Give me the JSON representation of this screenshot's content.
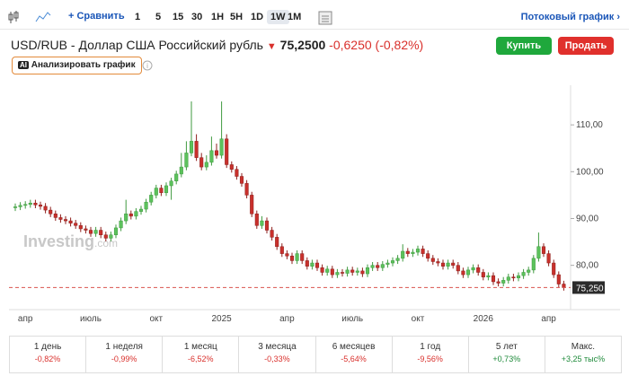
{
  "toolbar": {
    "compare": "Сравнить",
    "timeframes": [
      "1",
      "5",
      "15",
      "30",
      "1H",
      "5H",
      "1D",
      "1W",
      "1M"
    ],
    "selected": 7,
    "stream": "Потоковый график"
  },
  "header": {
    "title": "USD/RUB - Доллар США Российский рубль",
    "price": "75,2500",
    "change": "-0,6250",
    "change_pct": "(-0,82%)",
    "buy": "Купить",
    "sell": "Продать",
    "analyze": "Анализировать график",
    "ai": "AI"
  },
  "chart_data": {
    "type": "candlestick",
    "watermark": "Investing",
    "watermark_suffix": ".com",
    "up_color": "#5cc25c",
    "down_color": "#c9302c",
    "grid": false,
    "categories": [
      null,
      null,
      "апр",
      null,
      null,
      null,
      null,
      null,
      null,
      null,
      null,
      null,
      null,
      null,
      null,
      "июль",
      null,
      null,
      null,
      null,
      null,
      null,
      null,
      null,
      null,
      null,
      null,
      null,
      "окт",
      null,
      null,
      null,
      null,
      null,
      null,
      null,
      null,
      null,
      null,
      null,
      null,
      "2025",
      null,
      null,
      null,
      null,
      null,
      null,
      null,
      null,
      null,
      null,
      null,
      null,
      "апр",
      null,
      null,
      null,
      null,
      null,
      null,
      null,
      null,
      null,
      null,
      null,
      null,
      "июль",
      null,
      null,
      null,
      null,
      null,
      null,
      null,
      null,
      null,
      null,
      null,
      null,
      "окт",
      null,
      null,
      null,
      null,
      null,
      null,
      null,
      null,
      null,
      null,
      null,
      null,
      "2026",
      null,
      null,
      null,
      null,
      null,
      null,
      null,
      null,
      null,
      null,
      null,
      null,
      "апр",
      null,
      null,
      null
    ],
    "open": [
      92.3,
      92.5,
      92.8,
      93.0,
      93.3,
      92.9,
      92.6,
      91.8,
      91.0,
      90.2,
      89.8,
      89.5,
      89.0,
      88.5,
      87.8,
      87.5,
      86.8,
      87.5,
      86.5,
      85.8,
      86.5,
      88.0,
      89.5,
      91.0,
      90.5,
      91.5,
      92.0,
      93.5,
      95.0,
      96.5,
      95.5,
      97.0,
      98.0,
      99.5,
      101.0,
      104.0,
      106.5,
      103.0,
      101.0,
      102.0,
      104.5,
      103.5,
      107.0,
      101.5,
      100.5,
      99.0,
      97.5,
      95.0,
      91.0,
      88.5,
      89.5,
      87.5,
      86.0,
      84.0,
      82.5,
      82.0,
      81.0,
      82.5,
      81.0,
      79.8,
      80.5,
      79.5,
      78.5,
      79.2,
      78.0,
      78.5,
      78.3,
      79.0,
      78.5,
      78.8,
      78.2,
      79.5,
      80.0,
      79.5,
      80.2,
      80.5,
      81.0,
      81.5,
      83.0,
      82.5,
      82.8,
      83.5,
      82.5,
      81.5,
      80.8,
      80.5,
      79.8,
      80.5,
      80.0,
      78.8,
      78.0,
      79.0,
      79.5,
      78.5,
      77.5,
      77.8,
      76.5,
      76.2,
      76.8,
      77.5,
      77.3,
      77.8,
      78.5,
      79.0,
      81.5,
      84.0,
      82.5,
      80.5,
      78.0,
      76.0
    ],
    "high": [
      93.2,
      93.5,
      93.7,
      94.0,
      94.0,
      93.6,
      93.3,
      92.5,
      91.7,
      90.9,
      90.5,
      90.2,
      89.7,
      89.2,
      88.5,
      88.2,
      88.2,
      88.2,
      87.2,
      87.2,
      88.7,
      90.2,
      94.0,
      91.7,
      92.2,
      92.7,
      94.2,
      95.7,
      97.2,
      97.2,
      97.7,
      98.7,
      100.2,
      104.0,
      106.5,
      115.0,
      108.0,
      104.0,
      103.5,
      107.5,
      106.0,
      115.0,
      108.0,
      102.2,
      101.2,
      99.7,
      98.2,
      95.7,
      91.7,
      90.5,
      90.2,
      88.2,
      86.7,
      84.7,
      83.2,
      82.7,
      83.2,
      83.2,
      81.7,
      81.2,
      81.2,
      80.2,
      79.9,
      79.9,
      79.2,
      79.2,
      79.7,
      79.7,
      79.5,
      79.5,
      80.2,
      80.7,
      80.7,
      80.9,
      81.2,
      81.7,
      82.2,
      84.5,
      83.7,
      83.5,
      84.2,
      84.2,
      83.2,
      82.2,
      81.5,
      81.2,
      81.2,
      81.2,
      80.7,
      79.5,
      79.7,
      80.2,
      80.2,
      79.2,
      78.5,
      78.5,
      77.2,
      77.5,
      78.2,
      78.2,
      78.5,
      79.2,
      79.7,
      82.2,
      87.0,
      84.7,
      83.2,
      81.2,
      78.7,
      76.7
    ],
    "low": [
      91.6,
      91.8,
      92.1,
      92.3,
      92.2,
      91.9,
      91.1,
      90.3,
      89.5,
      89.1,
      88.8,
      88.3,
      87.8,
      87.1,
      86.8,
      86.1,
      86.1,
      85.8,
      85.1,
      85.1,
      85.8,
      87.3,
      88.8,
      89.8,
      89.8,
      90.8,
      91.3,
      92.8,
      94.3,
      94.8,
      94.8,
      94.0,
      97.3,
      98.8,
      100.3,
      103.3,
      102.3,
      100.3,
      100.3,
      101.3,
      102.8,
      102.8,
      100.8,
      99.8,
      98.3,
      96.8,
      94.3,
      90.3,
      87.8,
      87.8,
      86.8,
      85.3,
      83.3,
      81.8,
      81.3,
      80.3,
      80.3,
      80.3,
      79.1,
      79.1,
      78.8,
      77.8,
      77.8,
      77.3,
      77.3,
      77.6,
      77.6,
      77.8,
      77.8,
      77.5,
      77.5,
      78.8,
      78.8,
      78.8,
      79.5,
      79.8,
      80.3,
      80.8,
      81.8,
      81.8,
      82.1,
      81.8,
      80.8,
      80.1,
      79.8,
      79.1,
      79.1,
      79.3,
      78.1,
      77.3,
      77.3,
      78.3,
      77.8,
      76.8,
      76.8,
      75.8,
      75.5,
      75.5,
      76.1,
      76.6,
      76.6,
      77.1,
      77.8,
      78.3,
      80.8,
      81.8,
      79.8,
      77.3,
      75.3,
      74.6
    ],
    "close": [
      92.5,
      92.8,
      93.0,
      93.3,
      92.9,
      92.6,
      91.8,
      91.0,
      90.2,
      89.8,
      89.5,
      89.0,
      88.5,
      87.8,
      87.5,
      86.8,
      87.5,
      86.5,
      85.8,
      86.5,
      88.0,
      89.5,
      91.0,
      90.5,
      91.5,
      92.0,
      93.5,
      95.0,
      96.5,
      95.5,
      97.0,
      98.0,
      99.5,
      101.0,
      104.0,
      106.5,
      103.0,
      101.0,
      102.0,
      104.5,
      103.5,
      107.0,
      101.5,
      100.5,
      99.0,
      97.5,
      95.0,
      91.0,
      88.5,
      89.5,
      87.5,
      86.0,
      84.0,
      82.5,
      82.0,
      81.0,
      82.5,
      81.0,
      79.8,
      80.5,
      79.5,
      78.5,
      79.2,
      78.0,
      78.5,
      78.3,
      79.0,
      78.5,
      78.8,
      78.2,
      79.5,
      80.0,
      79.5,
      80.2,
      80.5,
      81.0,
      81.5,
      83.0,
      82.5,
      82.8,
      83.5,
      82.5,
      81.5,
      80.8,
      80.5,
      79.8,
      80.5,
      80.0,
      78.8,
      78.0,
      79.0,
      79.5,
      78.5,
      77.5,
      77.8,
      76.5,
      76.2,
      76.8,
      77.5,
      77.3,
      77.8,
      78.5,
      79.0,
      81.5,
      84.0,
      82.5,
      80.5,
      78.0,
      76.0,
      75.25
    ],
    "ylim": [
      71.5,
      117.5
    ],
    "yticks": [
      {
        "value": 80,
        "label": "80,00"
      },
      {
        "value": 90,
        "label": "90,00"
      },
      {
        "value": 100,
        "label": "100,00"
      },
      {
        "value": 110,
        "label": "110,00"
      }
    ],
    "price_line": {
      "value": 75.25,
      "label": "75,250",
      "color": "#d9534f"
    }
  },
  "periods": [
    {
      "label": "1 день",
      "change": "-0,82%",
      "color": "#d9302c"
    },
    {
      "label": "1 неделя",
      "change": "-0,99%",
      "color": "#d9302c"
    },
    {
      "label": "1 месяц",
      "change": "-6,52%",
      "color": "#d9302c"
    },
    {
      "label": "3 месяца",
      "change": "-0,33%",
      "color": "#d9302c"
    },
    {
      "label": "6 месяцев",
      "change": "-5,64%",
      "color": "#d9302c"
    },
    {
      "label": "1 год",
      "change": "-9,56%",
      "color": "#d9302c"
    },
    {
      "label": "5 лет",
      "change": "+0,73%",
      "color": "#1e8a3a"
    },
    {
      "label": "Макс.",
      "change": "+3,25 тыс%",
      "color": "#1e8a3a"
    }
  ]
}
